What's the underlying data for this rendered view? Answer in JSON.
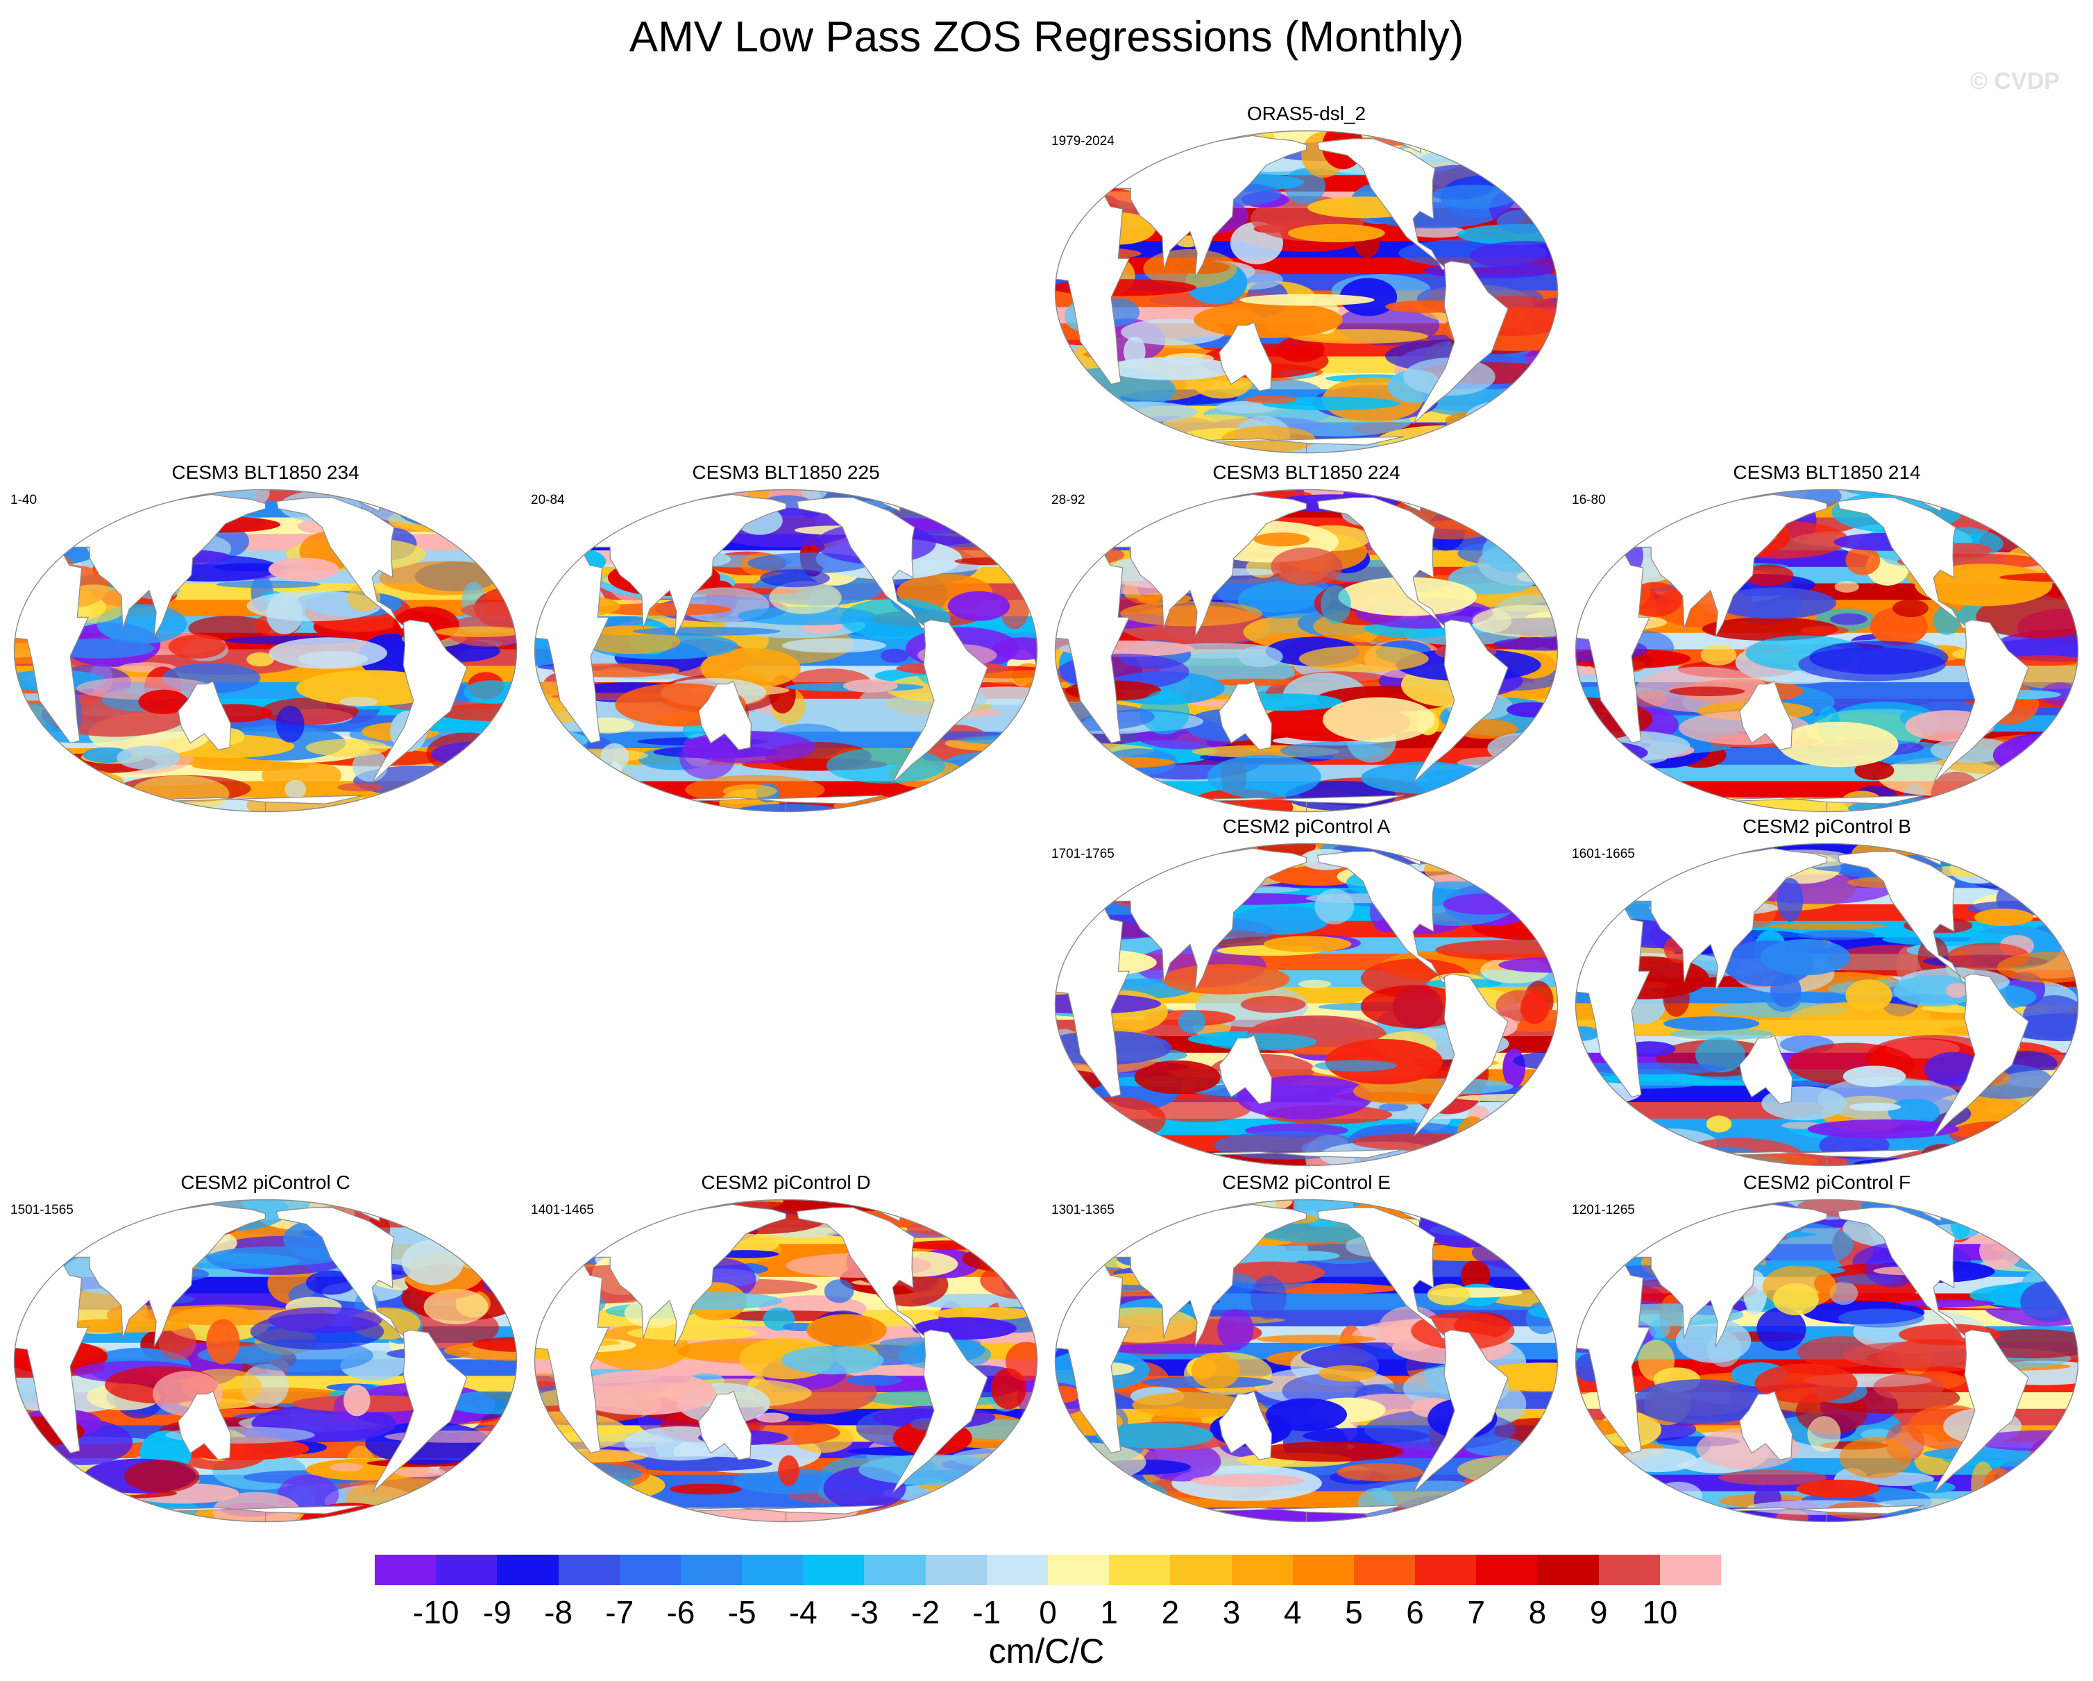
{
  "title": "AMV Low Pass ZOS Regressions (Monthly)",
  "watermark": "© CVDP",
  "panels": [
    {
      "name": "ORAS5-dsl_2",
      "years": "1979-2024",
      "seed": 11
    },
    {
      "name": "CESM3 BLT1850 234",
      "years": "1-40",
      "seed": 23
    },
    {
      "name": "CESM3 BLT1850 225",
      "years": "20-84",
      "seed": 37
    },
    {
      "name": "CESM3 BLT1850 224",
      "years": "28-92",
      "seed": 41
    },
    {
      "name": "CESM3 BLT1850 214",
      "years": "16-80",
      "seed": 53
    },
    {
      "name": "CESM2 piControl A",
      "years": "1701-1765",
      "seed": 61
    },
    {
      "name": "CESM2 piControl B",
      "years": "1601-1665",
      "seed": 73
    },
    {
      "name": "CESM2 piControl C",
      "years": "1501-1565",
      "seed": 89
    },
    {
      "name": "CESM2 piControl D",
      "years": "1401-1465",
      "seed": 97
    },
    {
      "name": "CESM2 piControl E",
      "years": "1301-1365",
      "seed": 109
    },
    {
      "name": "CESM2 piControl F",
      "years": "1201-1265",
      "seed": 127
    }
  ],
  "colorbar": {
    "labels": [
      "-10",
      "-9",
      "-8",
      "-7",
      "-6",
      "-5",
      "-4",
      "-3",
      "-2",
      "-1",
      "0",
      "1",
      "2",
      "3",
      "4",
      "5",
      "6",
      "7",
      "8",
      "9",
      "10"
    ],
    "colors": [
      "#7d1cf0",
      "#4b1ef0",
      "#1413f0",
      "#3a4fe6",
      "#2f6cf0",
      "#2a88f2",
      "#20a4f5",
      "#06c0f8",
      "#5dc6f2",
      "#a3d3f0",
      "#c8e6f6",
      "#fff6a8",
      "#ffdf45",
      "#ffc21e",
      "#ffa70b",
      "#ff8700",
      "#ff5a0f",
      "#f5250f",
      "#e80000",
      "#c80000",
      "#dc4646",
      "#fcb4b4"
    ],
    "units": "cm/C/C"
  }
}
